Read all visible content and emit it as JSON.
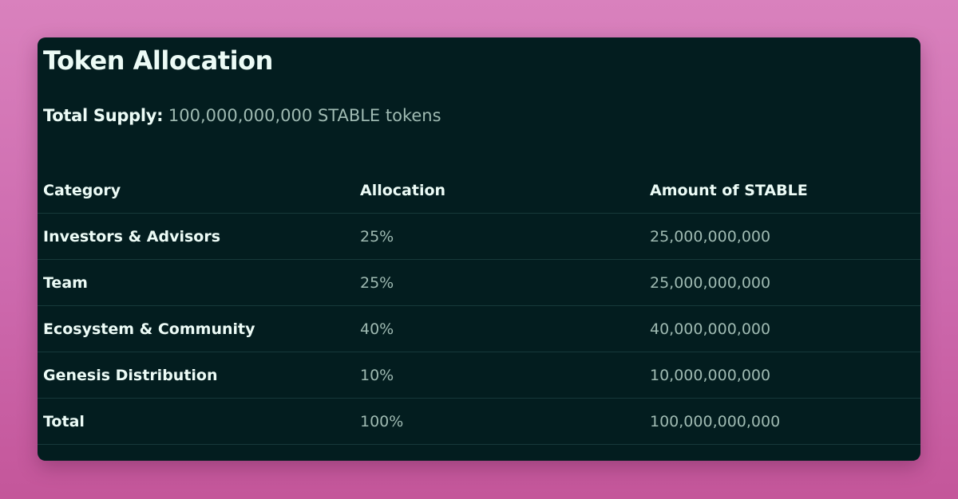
{
  "title": "Token Allocation",
  "total_supply": {
    "label": "Total Supply:",
    "value": "100,000,000,000 STABLE tokens"
  },
  "table": {
    "headers": [
      "Category",
      "Allocation",
      "Amount of STABLE"
    ],
    "rows": [
      [
        "Investors & Advisors",
        "25%",
        "25,000,000,000"
      ],
      [
        "Team",
        "25%",
        "25,000,000,000"
      ],
      [
        "Ecosystem & Community",
        "40%",
        "40,000,000,000"
      ],
      [
        "Genesis Distribution",
        "10%",
        "10,000,000,000"
      ],
      [
        "Total",
        "100%",
        "100,000,000,000"
      ]
    ]
  }
}
